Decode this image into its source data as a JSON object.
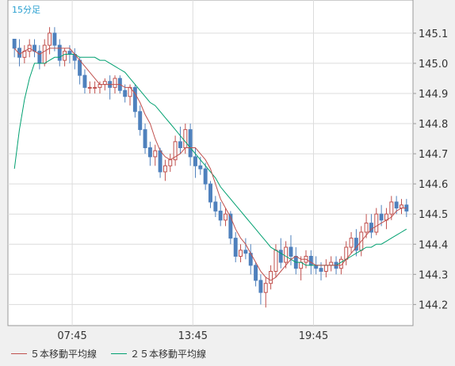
{
  "timeframe_label": "15分足",
  "colors": {
    "background": "#ffffff",
    "grid": "#dcdcdc",
    "up_candle_border": "#c0504d",
    "down_candle": "#4f81bd",
    "ma5": "#c0504d",
    "ma25": "#00a070",
    "timeframe_text": "#2aa0d0"
  },
  "legend": [
    {
      "label": "５本移動平均線",
      "color": "#c0504d"
    },
    {
      "label": "２５本移動平均線",
      "color": "#00a070"
    }
  ],
  "chart_data": {
    "type": "candlestick",
    "ylim": [
      144.13,
      145.21
    ],
    "y_ticks": [
      "145.1",
      "145.0",
      "144.9",
      "144.8",
      "144.7",
      "144.6",
      "144.5",
      "144.4",
      "144.3",
      "144.2"
    ],
    "x_ticks": [
      "07:45",
      "13:45",
      "19:45"
    ],
    "candles": [
      [
        145.08,
        145.08,
        145.02,
        145.05
      ],
      [
        145.05,
        145.08,
        144.99,
        145.02
      ],
      [
        145.02,
        145.06,
        145.0,
        145.04
      ],
      [
        145.04,
        145.08,
        145.02,
        145.06
      ],
      [
        145.06,
        145.08,
        145.02,
        145.04
      ],
      [
        145.04,
        145.06,
        144.98,
        145.0
      ],
      [
        145.0,
        145.08,
        144.99,
        145.06
      ],
      [
        145.06,
        145.12,
        145.03,
        145.1
      ],
      [
        145.1,
        145.12,
        145.04,
        145.06
      ],
      [
        145.06,
        145.08,
        144.99,
        145.01
      ],
      [
        145.01,
        145.05,
        144.99,
        145.04
      ],
      [
        145.04,
        145.06,
        145.0,
        145.03
      ],
      [
        145.03,
        145.05,
        144.98,
        145.01
      ],
      [
        145.01,
        145.02,
        144.93,
        144.96
      ],
      [
        144.96,
        144.98,
        144.9,
        144.92
      ],
      [
        144.92,
        144.94,
        144.9,
        144.92
      ],
      [
        144.92,
        144.94,
        144.9,
        144.92
      ],
      [
        144.92,
        144.94,
        144.9,
        144.93
      ],
      [
        144.93,
        144.95,
        144.91,
        144.94
      ],
      [
        144.94,
        144.96,
        144.88,
        144.92
      ],
      [
        144.92,
        144.96,
        144.9,
        144.95
      ],
      [
        144.95,
        144.96,
        144.9,
        144.91
      ],
      [
        144.91,
        144.93,
        144.87,
        144.89
      ],
      [
        144.89,
        144.93,
        144.86,
        144.92
      ],
      [
        144.92,
        144.93,
        144.82,
        144.84
      ],
      [
        144.84,
        144.86,
        144.76,
        144.78
      ],
      [
        144.78,
        144.8,
        144.7,
        144.72
      ],
      [
        144.72,
        144.74,
        144.66,
        144.69
      ],
      [
        144.69,
        144.73,
        144.66,
        144.71
      ],
      [
        144.71,
        144.72,
        144.62,
        144.64
      ],
      [
        144.64,
        144.68,
        144.61,
        144.66
      ],
      [
        144.66,
        144.7,
        144.64,
        144.68
      ],
      [
        144.68,
        144.76,
        144.66,
        144.74
      ],
      [
        144.74,
        144.79,
        144.7,
        144.72
      ],
      [
        144.72,
        144.8,
        144.7,
        144.78
      ],
      [
        144.78,
        144.8,
        144.66,
        144.69
      ],
      [
        144.69,
        144.72,
        144.62,
        144.66
      ],
      [
        144.66,
        144.69,
        144.63,
        144.65
      ],
      [
        144.65,
        144.67,
        144.58,
        144.6
      ],
      [
        144.6,
        144.61,
        144.52,
        144.54
      ],
      [
        144.54,
        144.56,
        144.49,
        144.51
      ],
      [
        144.51,
        144.54,
        144.46,
        144.48
      ],
      [
        144.48,
        144.52,
        144.46,
        144.5
      ],
      [
        144.5,
        144.51,
        144.4,
        144.42
      ],
      [
        144.42,
        144.44,
        144.34,
        144.36
      ],
      [
        144.36,
        144.4,
        144.34,
        144.38
      ],
      [
        144.38,
        144.42,
        144.35,
        144.37
      ],
      [
        144.37,
        144.4,
        144.3,
        144.33
      ],
      [
        144.33,
        144.34,
        144.26,
        144.28
      ],
      [
        144.28,
        144.3,
        144.2,
        144.24
      ],
      [
        144.24,
        144.29,
        144.19,
        144.27
      ],
      [
        144.27,
        144.33,
        144.25,
        144.31
      ],
      [
        144.31,
        144.4,
        144.29,
        144.38
      ],
      [
        144.38,
        144.42,
        144.32,
        144.34
      ],
      [
        144.34,
        144.41,
        144.32,
        144.39
      ],
      [
        144.39,
        144.43,
        144.33,
        144.36
      ],
      [
        144.36,
        144.39,
        144.3,
        144.32
      ],
      [
        144.32,
        144.36,
        144.28,
        144.34
      ],
      [
        144.34,
        144.38,
        144.32,
        144.36
      ],
      [
        144.36,
        144.38,
        144.3,
        144.33
      ],
      [
        144.33,
        144.36,
        144.3,
        144.32
      ],
      [
        144.32,
        144.34,
        144.28,
        144.31
      ],
      [
        144.31,
        144.35,
        144.29,
        144.33
      ],
      [
        144.33,
        144.36,
        144.31,
        144.34
      ],
      [
        144.34,
        144.36,
        144.3,
        144.32
      ],
      [
        144.32,
        144.36,
        144.3,
        144.35
      ],
      [
        144.35,
        144.41,
        144.33,
        144.39
      ],
      [
        144.39,
        144.44,
        144.37,
        144.42
      ],
      [
        144.42,
        144.45,
        144.36,
        144.38
      ],
      [
        144.38,
        144.46,
        144.36,
        144.44
      ],
      [
        144.44,
        144.5,
        144.42,
        144.47
      ],
      [
        144.47,
        144.5,
        144.42,
        144.44
      ],
      [
        144.44,
        144.52,
        144.43,
        144.5
      ],
      [
        144.5,
        144.53,
        144.46,
        144.48
      ],
      [
        144.48,
        144.52,
        144.45,
        144.5
      ],
      [
        144.5,
        144.56,
        144.48,
        144.54
      ],
      [
        144.54,
        144.56,
        144.5,
        144.52
      ],
      [
        144.52,
        144.55,
        144.5,
        144.53
      ],
      [
        144.53,
        144.55,
        144.49,
        144.51
      ]
    ],
    "ma5": [
      145.05,
      145.03,
      145.04,
      145.05,
      145.04,
      145.03,
      145.04,
      145.05,
      145.05,
      145.05,
      145.05,
      145.05,
      145.03,
      145.01,
      144.99,
      144.97,
      144.95,
      144.93,
      144.93,
      144.93,
      144.93,
      144.93,
      144.92,
      144.92,
      144.9,
      144.87,
      144.83,
      144.8,
      144.75,
      144.71,
      144.69,
      144.68,
      144.69,
      144.7,
      144.72,
      144.72,
      144.72,
      144.7,
      144.68,
      144.65,
      144.6,
      144.55,
      144.52,
      144.49,
      144.45,
      144.42,
      144.4,
      144.37,
      144.34,
      144.31,
      144.29,
      144.28,
      144.29,
      144.31,
      144.33,
      144.35,
      144.36,
      144.35,
      144.35,
      144.34,
      144.33,
      144.33,
      144.33,
      144.33,
      144.33,
      144.33,
      144.35,
      144.37,
      144.39,
      144.41,
      144.43,
      144.45,
      144.46,
      144.47,
      144.48,
      144.49,
      144.51,
      144.52,
      144.52
    ],
    "ma25": [
      144.65,
      144.78,
      144.88,
      144.95,
      145.0,
      145.0,
      145.0,
      145.01,
      145.02,
      145.02,
      145.03,
      145.03,
      145.03,
      145.02,
      145.02,
      145.02,
      145.02,
      145.01,
      145.01,
      145.0,
      144.99,
      144.98,
      144.97,
      144.95,
      144.93,
      144.91,
      144.89,
      144.87,
      144.86,
      144.84,
      144.82,
      144.8,
      144.78,
      144.76,
      144.74,
      144.72,
      144.7,
      144.68,
      144.66,
      144.64,
      144.62,
      144.59,
      144.57,
      144.55,
      144.53,
      144.51,
      144.49,
      144.47,
      144.45,
      144.43,
      144.41,
      144.39,
      144.38,
      144.37,
      144.36,
      144.35,
      144.34,
      144.34,
      144.33,
      144.33,
      144.33,
      144.33,
      144.33,
      144.33,
      144.33,
      144.34,
      144.35,
      144.36,
      144.37,
      144.38,
      144.39,
      144.39,
      144.4,
      144.4,
      144.41,
      144.42,
      144.43,
      144.44,
      144.45
    ]
  }
}
